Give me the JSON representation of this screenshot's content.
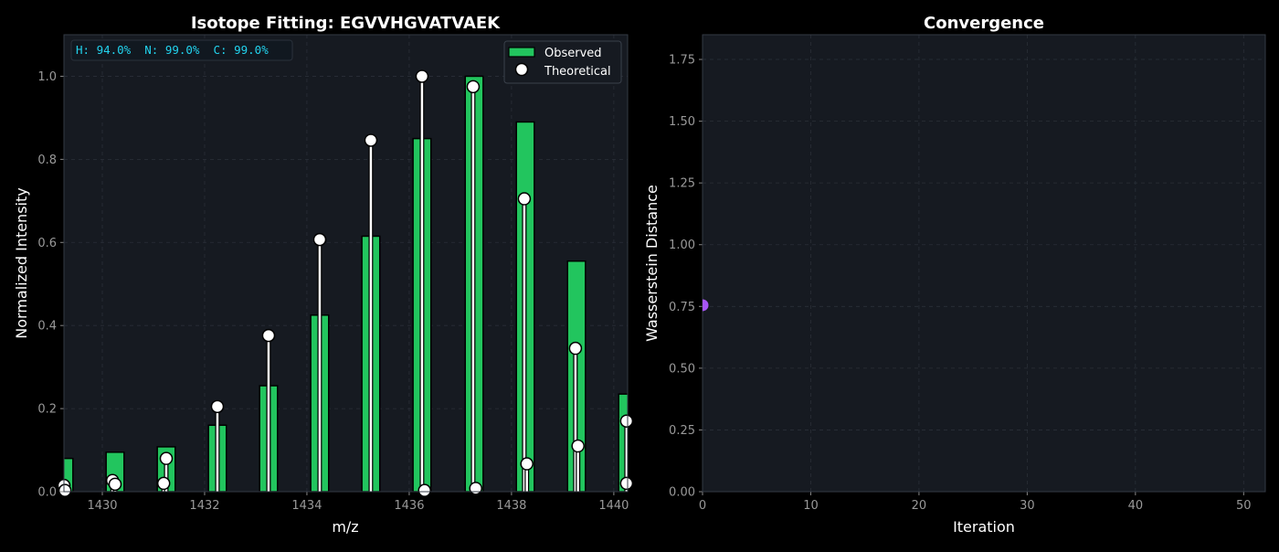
{
  "colors": {
    "background": "#000000",
    "plot_bg": "#161a21",
    "observed": "#22c55e",
    "theoretical": "#ffffff",
    "annotation": "#22d3ee",
    "convergence_point": "#a855f7"
  },
  "chart_data": [
    {
      "type": "bar",
      "title": "Isotope Fitting: EGVVHGVATVAEK",
      "xlabel": "m/z",
      "ylabel": "Normalized Intensity",
      "xlim": [
        1429.25,
        1440.27
      ],
      "ylim": [
        0,
        1.1
      ],
      "xticks": [
        "1430",
        "1432",
        "1434",
        "1436",
        "1438",
        "1440"
      ],
      "yticks": [
        "0.0",
        "0.2",
        "0.4",
        "0.6",
        "0.8",
        "1.0"
      ],
      "grid": true,
      "legend": {
        "placement": "top-right",
        "entries": [
          "Observed",
          "Theoretical"
        ]
      },
      "annotation": "H: 94.0%  N: 99.0%  C: 99.0%",
      "series": [
        {
          "name": "Observed",
          "kind": "bar",
          "x": [
            1429.25,
            1430.25,
            1431.25,
            1432.25,
            1433.25,
            1434.25,
            1435.25,
            1436.25,
            1437.27,
            1438.27,
            1439.27,
            1440.27
          ],
          "y": [
            0.08,
            0.095,
            0.108,
            0.16,
            0.255,
            0.425,
            0.615,
            0.85,
            1.0,
            0.89,
            0.555,
            0.235
          ]
        },
        {
          "name": "Theoretical",
          "kind": "stem",
          "x": [
            1429.25,
            1429.27,
            1430.2,
            1430.25,
            1431.2,
            1431.25,
            1432.25,
            1433.25,
            1434.25,
            1435.25,
            1436.25,
            1436.3,
            1437.25,
            1437.3,
            1438.25,
            1438.3,
            1439.25,
            1439.3,
            1440.25,
            1440.25
          ],
          "y": [
            0.015,
            0.003,
            0.027,
            0.018,
            0.02,
            0.08,
            0.205,
            0.376,
            0.607,
            0.846,
            1.0,
            0.003,
            0.975,
            0.008,
            0.705,
            0.067,
            0.345,
            0.11,
            0.17,
            0.02
          ]
        }
      ]
    },
    {
      "type": "scatter",
      "title": "Convergence",
      "xlabel": "Iteration",
      "ylabel": "Wasserstein Distance",
      "xlim": [
        0,
        52
      ],
      "ylim": [
        0,
        1.85
      ],
      "xticks": [
        "0",
        "10",
        "20",
        "30",
        "40",
        "50"
      ],
      "yticks": [
        "0.00",
        "0.25",
        "0.50",
        "0.75",
        "1.00",
        "1.25",
        "1.50",
        "1.75"
      ],
      "grid": true,
      "series": [
        {
          "x": [
            0
          ],
          "y": [
            0.755
          ]
        }
      ]
    }
  ]
}
